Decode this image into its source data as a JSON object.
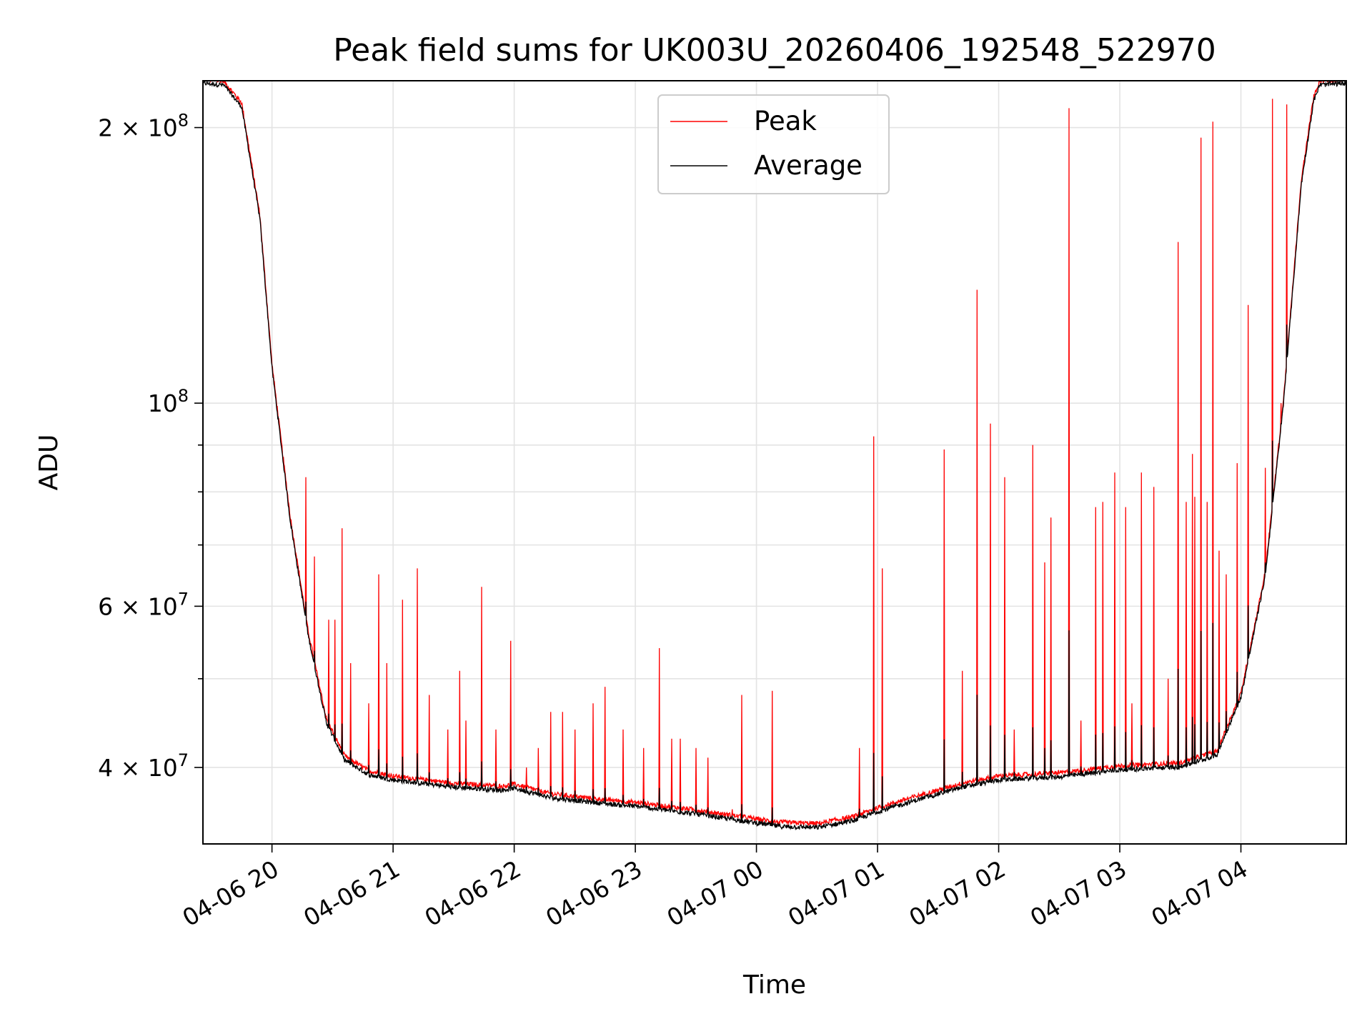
{
  "chart_data": {
    "type": "line",
    "title": "Peak field sums for UK003U_20260406_192548_522970",
    "xlabel": "Time",
    "ylabel": "ADU",
    "yscale": "log",
    "grid": true,
    "legend_position": "top-center",
    "xlim_hours": [
      -0.57,
      8.87
    ],
    "ylim": [
      33000000,
      225000000
    ],
    "x_unit": "hours after 04-06 20:00",
    "x_ticks": [
      {
        "value": 0,
        "label": "04-06 20"
      },
      {
        "value": 1,
        "label": "04-06 21"
      },
      {
        "value": 2,
        "label": "04-06 22"
      },
      {
        "value": 3,
        "label": "04-06 23"
      },
      {
        "value": 4,
        "label": "04-07 00"
      },
      {
        "value": 5,
        "label": "04-07 01"
      },
      {
        "value": 6,
        "label": "04-07 02"
      },
      {
        "value": 7,
        "label": "04-07 03"
      },
      {
        "value": 8,
        "label": "04-07 04"
      }
    ],
    "y_ticks_major": [
      {
        "value": 40000000,
        "mant": "4",
        "label_full": "4 × 10^7"
      },
      {
        "value": 60000000,
        "mant": "6",
        "label_full": "6 × 10^7"
      },
      {
        "value": 100000000,
        "mant": "",
        "label_full": "10^8"
      },
      {
        "value": 200000000,
        "mant": "2",
        "label_full": "2 × 10^8"
      }
    ],
    "y_ticks_minor": [
      50000000,
      70000000,
      80000000,
      90000000
    ],
    "series": [
      {
        "name": "Peak",
        "color": "#ff0000",
        "baseline_points": [
          [
            -0.57,
            225000000
          ],
          [
            -0.4,
            224000000
          ],
          [
            -0.25,
            212000000
          ],
          [
            -0.1,
            160000000
          ],
          [
            0.0,
            110000000
          ],
          [
            0.15,
            75000000
          ],
          [
            0.3,
            56000000
          ],
          [
            0.45,
            45000000
          ],
          [
            0.6,
            41000000
          ],
          [
            0.8,
            39500000
          ],
          [
            1.0,
            39000000
          ],
          [
            1.5,
            38300000
          ],
          [
            1.9,
            38000000
          ],
          [
            2.0,
            38200000
          ],
          [
            2.3,
            37300000
          ],
          [
            2.7,
            36800000
          ],
          [
            3.0,
            36500000
          ],
          [
            3.5,
            35800000
          ],
          [
            4.0,
            35000000
          ],
          [
            4.2,
            34700000
          ],
          [
            4.5,
            34600000
          ],
          [
            4.8,
            35200000
          ],
          [
            5.0,
            36000000
          ],
          [
            5.3,
            37000000
          ],
          [
            5.7,
            38300000
          ],
          [
            6.0,
            39000000
          ],
          [
            6.5,
            39300000
          ],
          [
            7.0,
            40000000
          ],
          [
            7.5,
            40300000
          ],
          [
            7.8,
            41500000
          ],
          [
            8.0,
            48000000
          ],
          [
            8.2,
            65000000
          ],
          [
            8.35,
            100000000
          ],
          [
            8.5,
            175000000
          ],
          [
            8.6,
            215000000
          ],
          [
            8.65,
            224000000
          ],
          [
            8.87,
            225000000
          ]
        ],
        "spikes": [
          [
            0.28,
            83000000
          ],
          [
            0.35,
            68000000
          ],
          [
            0.47,
            58000000
          ],
          [
            0.52,
            58000000
          ],
          [
            0.58,
            73000000
          ],
          [
            0.65,
            52000000
          ],
          [
            0.8,
            47000000
          ],
          [
            0.88,
            65000000
          ],
          [
            0.95,
            52000000
          ],
          [
            1.08,
            61000000
          ],
          [
            1.2,
            66000000
          ],
          [
            1.3,
            48000000
          ],
          [
            1.45,
            44000000
          ],
          [
            1.55,
            51000000
          ],
          [
            1.6,
            45000000
          ],
          [
            1.73,
            63000000
          ],
          [
            1.85,
            44000000
          ],
          [
            1.97,
            55000000
          ],
          [
            2.1,
            40000000
          ],
          [
            2.2,
            42000000
          ],
          [
            2.3,
            46000000
          ],
          [
            2.4,
            46000000
          ],
          [
            2.5,
            44000000
          ],
          [
            2.65,
            47000000
          ],
          [
            2.75,
            49000000
          ],
          [
            2.9,
            44000000
          ],
          [
            3.07,
            42000000
          ],
          [
            3.2,
            54000000
          ],
          [
            3.3,
            43000000
          ],
          [
            3.37,
            43000000
          ],
          [
            3.5,
            42000000
          ],
          [
            3.6,
            41000000
          ],
          [
            3.8,
            36000000
          ],
          [
            3.88,
            48000000
          ],
          [
            4.13,
            48500000
          ],
          [
            4.85,
            42000000
          ],
          [
            4.97,
            92000000
          ],
          [
            5.04,
            66000000
          ],
          [
            5.55,
            89000000
          ],
          [
            5.7,
            51000000
          ],
          [
            5.82,
            133000000
          ],
          [
            5.93,
            95000000
          ],
          [
            6.05,
            83000000
          ],
          [
            6.13,
            44000000
          ],
          [
            6.28,
            90000000
          ],
          [
            6.38,
            67000000
          ],
          [
            6.43,
            75000000
          ],
          [
            6.58,
            210000000
          ],
          [
            6.68,
            45000000
          ],
          [
            6.8,
            77000000
          ],
          [
            6.86,
            78000000
          ],
          [
            6.96,
            84000000
          ],
          [
            7.05,
            77000000
          ],
          [
            7.1,
            47000000
          ],
          [
            7.18,
            84000000
          ],
          [
            7.28,
            81000000
          ],
          [
            7.4,
            50000000
          ],
          [
            7.48,
            150000000
          ],
          [
            7.55,
            78000000
          ],
          [
            7.6,
            88000000
          ],
          [
            7.62,
            79000000
          ],
          [
            7.67,
            195000000
          ],
          [
            7.72,
            78000000
          ],
          [
            7.77,
            203000000
          ],
          [
            7.82,
            69000000
          ],
          [
            7.88,
            65000000
          ],
          [
            7.97,
            86000000
          ],
          [
            8.06,
            128000000
          ],
          [
            8.12,
            56000000
          ],
          [
            8.2,
            85000000
          ],
          [
            8.26,
            215000000
          ],
          [
            8.33,
            100000000
          ],
          [
            8.38,
            212000000
          ]
        ]
      },
      {
        "name": "Average",
        "color": "#000000"
      }
    ]
  }
}
